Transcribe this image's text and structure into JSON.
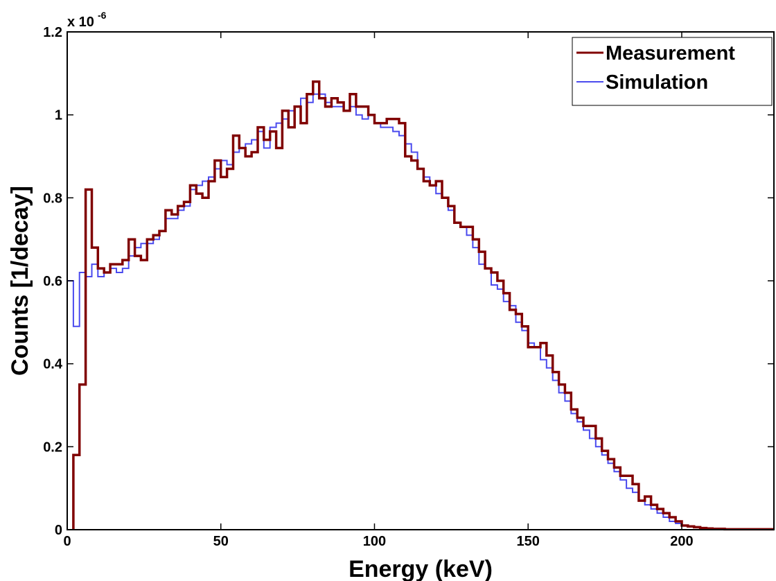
{
  "chart_data": {
    "type": "line",
    "title": "",
    "xlabel": "Energy (keV)",
    "ylabel": "Counts [1/decay]",
    "xlim": [
      0,
      230
    ],
    "ylim": [
      0,
      1.2
    ],
    "y_scale_exponent_label": "x 10",
    "y_scale_exponent_power": "-6",
    "xticks": [
      0,
      50,
      100,
      150,
      200
    ],
    "xtick_labels": [
      "0",
      "50",
      "100",
      "150",
      "200"
    ],
    "yticks": [
      0,
      0.2,
      0.4,
      0.6,
      0.8,
      1.0,
      1.2
    ],
    "ytick_labels": [
      "0",
      "0.2",
      "0.4",
      "0.6",
      "0.8",
      "1",
      "1.2"
    ],
    "grid": false,
    "legend_position": "top-right",
    "series": [
      {
        "name": "Measurement",
        "color": "#800000",
        "style": "step",
        "x": [
          2,
          4,
          6,
          8,
          10,
          12,
          14,
          16,
          18,
          20,
          22,
          24,
          26,
          28,
          30,
          32,
          34,
          36,
          38,
          40,
          42,
          44,
          46,
          48,
          50,
          52,
          54,
          56,
          58,
          60,
          62,
          64,
          66,
          68,
          70,
          72,
          74,
          76,
          78,
          80,
          82,
          84,
          86,
          88,
          90,
          92,
          94,
          96,
          98,
          100,
          102,
          104,
          106,
          108,
          110,
          112,
          114,
          116,
          118,
          120,
          122,
          124,
          126,
          128,
          130,
          132,
          134,
          136,
          138,
          140,
          142,
          144,
          146,
          148,
          150,
          152,
          154,
          156,
          158,
          160,
          162,
          164,
          166,
          168,
          170,
          172,
          174,
          176,
          178,
          180,
          182,
          184,
          186,
          188,
          190,
          192,
          194,
          196,
          198,
          200,
          202,
          204,
          206,
          208,
          210,
          212,
          214,
          216,
          218,
          220,
          222,
          224,
          226,
          228
        ],
        "values": [
          0.18,
          0.35,
          0.82,
          0.68,
          0.63,
          0.62,
          0.64,
          0.64,
          0.65,
          0.7,
          0.66,
          0.65,
          0.7,
          0.71,
          0.72,
          0.77,
          0.76,
          0.78,
          0.79,
          0.83,
          0.81,
          0.8,
          0.84,
          0.89,
          0.85,
          0.87,
          0.95,
          0.92,
          0.9,
          0.91,
          0.97,
          0.94,
          0.96,
          0.92,
          1.01,
          0.97,
          1.02,
          0.98,
          1.05,
          1.08,
          1.04,
          1.02,
          1.04,
          1.03,
          1.01,
          1.05,
          1.02,
          1.02,
          1.0,
          0.98,
          0.98,
          0.99,
          0.99,
          0.98,
          0.9,
          0.89,
          0.87,
          0.84,
          0.83,
          0.84,
          0.8,
          0.78,
          0.74,
          0.73,
          0.73,
          0.7,
          0.67,
          0.63,
          0.62,
          0.6,
          0.57,
          0.53,
          0.52,
          0.49,
          0.44,
          0.44,
          0.45,
          0.42,
          0.38,
          0.35,
          0.33,
          0.29,
          0.27,
          0.25,
          0.25,
          0.22,
          0.19,
          0.17,
          0.15,
          0.13,
          0.13,
          0.11,
          0.07,
          0.08,
          0.06,
          0.05,
          0.04,
          0.03,
          0.02,
          0.01,
          0.008,
          0.006,
          0.004,
          0.003,
          0.002,
          0.002,
          0.001,
          0.001,
          0.001,
          0.001,
          0.001,
          0.001,
          0.001,
          0.001
        ]
      },
      {
        "name": "Simulation",
        "color": "#4a4aee",
        "style": "step",
        "x": [
          0,
          2,
          4,
          6,
          8,
          10,
          12,
          14,
          16,
          18,
          20,
          22,
          24,
          26,
          28,
          30,
          32,
          34,
          36,
          38,
          40,
          42,
          44,
          46,
          48,
          50,
          52,
          54,
          56,
          58,
          60,
          62,
          64,
          66,
          68,
          70,
          72,
          74,
          76,
          78,
          80,
          82,
          84,
          86,
          88,
          90,
          92,
          94,
          96,
          98,
          100,
          102,
          104,
          106,
          108,
          110,
          112,
          114,
          116,
          118,
          120,
          122,
          124,
          126,
          128,
          130,
          132,
          134,
          136,
          138,
          140,
          142,
          144,
          146,
          148,
          150,
          152,
          154,
          156,
          158,
          160,
          162,
          164,
          166,
          168,
          170,
          172,
          174,
          176,
          178,
          180,
          182,
          184,
          186,
          188,
          190,
          192,
          194,
          196,
          198,
          200,
          202,
          204,
          206,
          208,
          210,
          212,
          214,
          216,
          218,
          220,
          222,
          224,
          226,
          228
        ],
        "values": [
          0.6,
          0.49,
          0.62,
          0.61,
          0.64,
          0.61,
          0.62,
          0.63,
          0.62,
          0.63,
          0.66,
          0.68,
          0.69,
          0.69,
          0.7,
          0.72,
          0.75,
          0.75,
          0.77,
          0.78,
          0.82,
          0.83,
          0.84,
          0.85,
          0.87,
          0.89,
          0.88,
          0.91,
          0.92,
          0.93,
          0.94,
          0.96,
          0.92,
          0.97,
          0.98,
          0.99,
          1.01,
          1.02,
          1.04,
          1.03,
          1.05,
          1.05,
          1.03,
          1.02,
          1.02,
          1.01,
          1.02,
          1.0,
          0.99,
          1.0,
          0.98,
          0.97,
          0.97,
          0.96,
          0.95,
          0.93,
          0.91,
          0.87,
          0.85,
          0.83,
          0.81,
          0.8,
          0.77,
          0.74,
          0.73,
          0.71,
          0.68,
          0.64,
          0.63,
          0.59,
          0.58,
          0.55,
          0.54,
          0.5,
          0.48,
          0.45,
          0.44,
          0.41,
          0.39,
          0.36,
          0.33,
          0.31,
          0.28,
          0.26,
          0.24,
          0.22,
          0.2,
          0.18,
          0.16,
          0.14,
          0.12,
          0.1,
          0.09,
          0.07,
          0.06,
          0.05,
          0.04,
          0.03,
          0.02,
          0.015,
          0.01,
          0.007,
          0.005,
          0.004,
          0.003,
          0.002,
          0.002,
          0.001,
          0.001,
          0.001,
          0.001,
          0.001,
          0.001,
          0.001,
          0.001
        ]
      }
    ]
  }
}
